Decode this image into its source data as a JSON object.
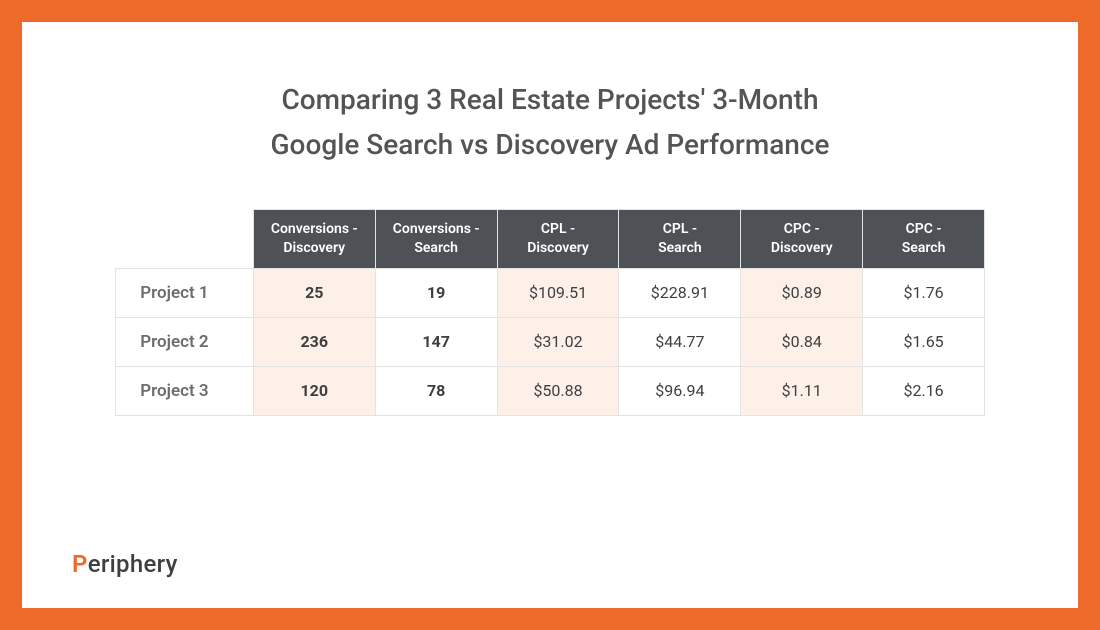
{
  "title_line1": "Comparing 3 Real Estate Projects' 3-Month",
  "title_line2": "Google Search vs Discovery Ad Performance",
  "colors": {
    "accent": "#ed6a2a",
    "header_bg": "#4e5155",
    "shade_bg": "#fdf0e8",
    "grid": "#e3e3e3",
    "title": "#545454",
    "rowlabel": "#6b6e71",
    "text": "#3f3f3f"
  },
  "table": {
    "columns": [
      "Conversions - Discovery",
      "Conversions - Search",
      "CPL - Discovery",
      "CPL - Search",
      "CPC - Discovery",
      "CPC - Search"
    ],
    "row_labels": [
      "Project 1",
      "Project 2",
      "Project 3"
    ],
    "rows": [
      [
        "25",
        "19",
        "$109.51",
        "$228.91",
        "$0.89",
        "$1.76"
      ],
      [
        "236",
        "147",
        "$31.02",
        "$44.77",
        "$0.84",
        "$1.65"
      ],
      [
        "120",
        "78",
        "$50.88",
        "$96.94",
        "$1.11",
        "$2.16"
      ]
    ],
    "bold_cols": [
      0,
      1
    ],
    "shade_cols": [
      0,
      2,
      4
    ]
  },
  "logo": {
    "first": "P",
    "rest": "eriphery"
  }
}
